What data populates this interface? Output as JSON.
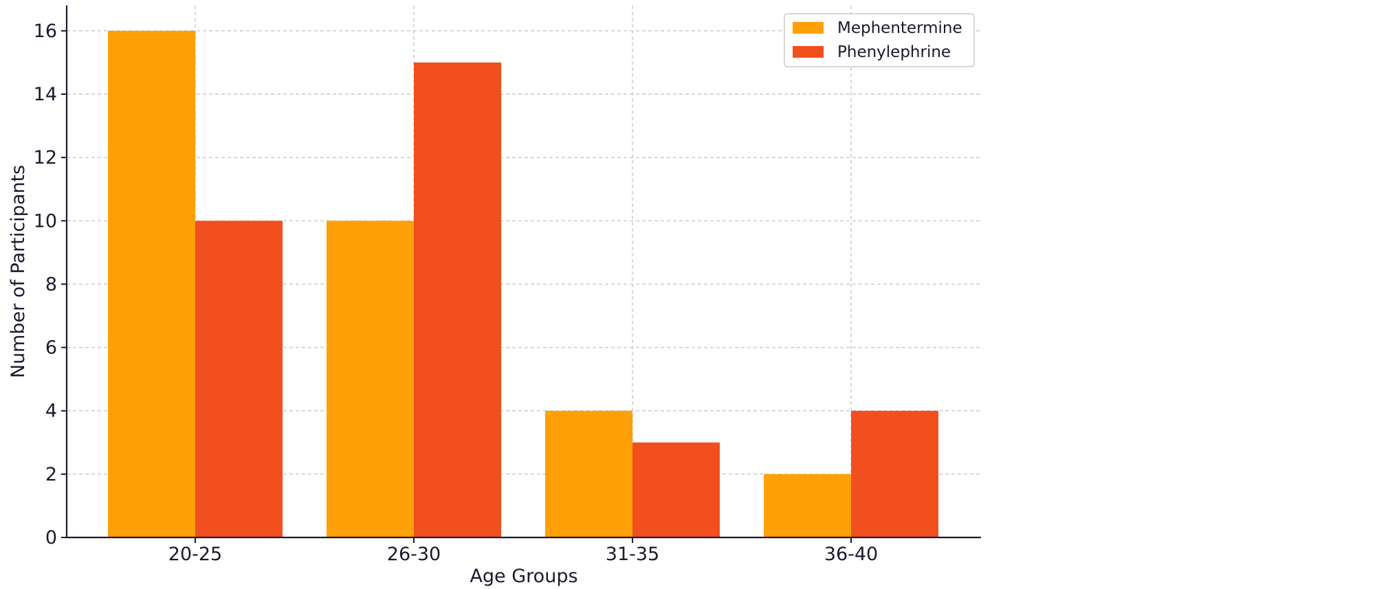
{
  "chart_data": {
    "type": "bar",
    "categories": [
      "20-25",
      "26-30",
      "31-35",
      "36-40"
    ],
    "series": [
      {
        "name": "Mephentermine",
        "values": [
          16,
          10,
          4,
          2
        ],
        "color": "#FFA008"
      },
      {
        "name": "Phenylephrine",
        "values": [
          10,
          15,
          3,
          4
        ],
        "color": "#F24F1F"
      }
    ],
    "title": "",
    "xlabel": "Age Groups",
    "ylabel": "Number of Participants",
    "ylim": [
      0,
      16.8
    ],
    "yticks": [
      0,
      2,
      4,
      6,
      8,
      10,
      12,
      14,
      16
    ],
    "grid": true,
    "legend_position": "top-right",
    "colors": {
      "axis": "#1a1a2e",
      "grid": "#c8c8c8",
      "legend_border": "#cccccc"
    }
  }
}
